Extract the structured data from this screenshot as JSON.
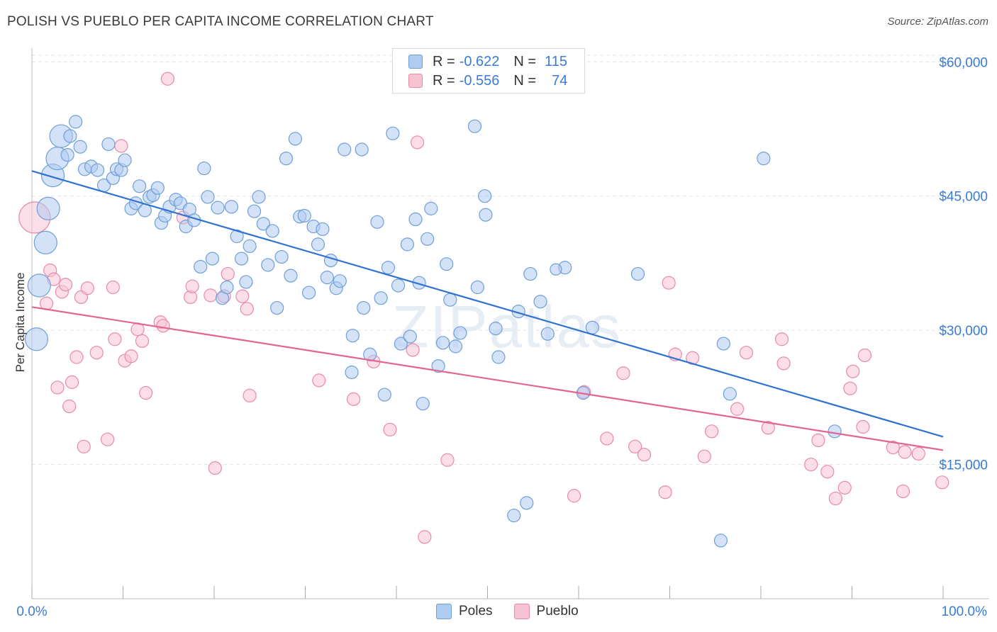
{
  "title": "POLISH VS PUEBLO PER CAPITA INCOME CORRELATION CHART",
  "source": "Source: ZipAtlas.com",
  "watermark": "ZIPatlas",
  "legend": {
    "rows": [
      {
        "r_label": "R =",
        "r_value": "-0.622",
        "n_label": "N =",
        "n_value": "115"
      },
      {
        "r_label": "R =",
        "r_value": "-0.556",
        "n_label": "N =",
        "n_value": "74"
      }
    ]
  },
  "bottom_legend": [
    "Poles",
    "Pueblo"
  ],
  "colors": {
    "poles_fill": "#aecbf0",
    "poles_stroke": "#6f9fd8",
    "poles_line": "#2f72d0",
    "pueblo_fill": "#f7c3d3",
    "pueblo_stroke": "#e88aa8",
    "pueblo_line": "#e2648f",
    "tick_label": "#3a7bd5",
    "grid": "#e3e3e3"
  },
  "chart_data": {
    "type": "scatter",
    "title": "POLISH VS PUEBLO PER CAPITA INCOME CORRELATION CHART",
    "xlabel": "",
    "ylabel": "Per Capita Income",
    "xlim": [
      0,
      100
    ],
    "ylim": [
      0,
      62000
    ],
    "x_tick_labels": [
      "0.0%",
      "100.0%"
    ],
    "y_ticks": [
      15000,
      30000,
      45000,
      60000
    ],
    "y_tick_labels": [
      "$15,000",
      "$30,000",
      "$45,000",
      "$60,000"
    ],
    "grid": "horizontal dashed",
    "legend_position": "top-center",
    "series": [
      {
        "name": "Poles",
        "trend": {
          "x": [
            0,
            100
          ],
          "y": [
            47800,
            18100
          ]
        },
        "points": [
          [
            0.5,
            29000,
            2
          ],
          [
            0.8,
            35000,
            2
          ],
          [
            1.5,
            39800,
            2
          ],
          [
            1.8,
            43600,
            2
          ],
          [
            2.3,
            47300,
            2
          ],
          [
            2.8,
            49200,
            2
          ],
          [
            3.2,
            51700,
            2
          ],
          [
            3.9,
            49600,
            1
          ],
          [
            4.2,
            51700,
            1
          ],
          [
            4.8,
            53300,
            1
          ],
          [
            5.3,
            50500,
            1
          ],
          [
            5.8,
            48000,
            1
          ],
          [
            6.5,
            48300,
            1
          ],
          [
            7.2,
            47900,
            1
          ],
          [
            7.9,
            46200,
            1
          ],
          [
            8.4,
            50800,
            1
          ],
          [
            8.9,
            47000,
            1
          ],
          [
            9.3,
            48000,
            1
          ],
          [
            9.8,
            47900,
            1
          ],
          [
            10.2,
            49000,
            1
          ],
          [
            10.9,
            43600,
            1
          ],
          [
            11.4,
            44200,
            1
          ],
          [
            11.8,
            46100,
            1
          ],
          [
            12.4,
            43400,
            1
          ],
          [
            12.9,
            44900,
            1
          ],
          [
            13.3,
            45100,
            1
          ],
          [
            13.8,
            45900,
            1
          ],
          [
            14.2,
            42000,
            1
          ],
          [
            14.6,
            42800,
            1
          ],
          [
            15.1,
            43800,
            1
          ],
          [
            15.8,
            44600,
            1
          ],
          [
            16.3,
            44200,
            1
          ],
          [
            16.9,
            41600,
            1
          ],
          [
            17.3,
            43500,
            1
          ],
          [
            17.8,
            42300,
            1
          ],
          [
            18.5,
            37100,
            1
          ],
          [
            18.9,
            48100,
            1
          ],
          [
            19.3,
            44900,
            1
          ],
          [
            19.8,
            38000,
            1
          ],
          [
            20.4,
            43700,
            1
          ],
          [
            20.9,
            33600,
            1
          ],
          [
            21.4,
            34800,
            1
          ],
          [
            21.9,
            43800,
            1
          ],
          [
            22.5,
            40500,
            1
          ],
          [
            23.0,
            38000,
            1
          ],
          [
            23.5,
            35400,
            1
          ],
          [
            23.9,
            39400,
            1
          ],
          [
            24.4,
            43300,
            1
          ],
          [
            24.9,
            44900,
            1
          ],
          [
            25.4,
            41900,
            1
          ],
          [
            25.9,
            37300,
            1
          ],
          [
            26.4,
            41100,
            1
          ],
          [
            26.9,
            32500,
            1
          ],
          [
            27.4,
            38200,
            1
          ],
          [
            27.9,
            49200,
            1
          ],
          [
            28.4,
            36100,
            1
          ],
          [
            28.9,
            51400,
            1
          ],
          [
            29.4,
            42700,
            1
          ],
          [
            29.9,
            42800,
            1
          ],
          [
            30.4,
            34200,
            1
          ],
          [
            30.9,
            41600,
            1
          ],
          [
            31.4,
            39600,
            1
          ],
          [
            31.9,
            41300,
            1
          ],
          [
            32.4,
            35900,
            1
          ],
          [
            32.8,
            37800,
            1
          ],
          [
            33.4,
            34700,
            1
          ],
          [
            33.8,
            35500,
            1
          ],
          [
            34.3,
            50200,
            1
          ],
          [
            35.1,
            25300,
            1
          ],
          [
            35.2,
            29400,
            1
          ],
          [
            36.2,
            50200,
            1
          ],
          [
            36.4,
            32500,
            1
          ],
          [
            37.1,
            27300,
            1
          ],
          [
            37.9,
            42100,
            1
          ],
          [
            38.3,
            33600,
            1
          ],
          [
            38.7,
            22800,
            1
          ],
          [
            39.1,
            37000,
            1
          ],
          [
            39.6,
            52000,
            1
          ],
          [
            40.2,
            35000,
            1
          ],
          [
            40.5,
            28500,
            1
          ],
          [
            41.2,
            39600,
            1
          ],
          [
            41.5,
            29300,
            1
          ],
          [
            42.1,
            42400,
            1
          ],
          [
            42.5,
            35300,
            1
          ],
          [
            42.9,
            21800,
            1
          ],
          [
            43.4,
            40200,
            1
          ],
          [
            43.8,
            43600,
            1
          ],
          [
            44.6,
            26000,
            1
          ],
          [
            45.1,
            28600,
            1
          ],
          [
            45.5,
            37400,
            1
          ],
          [
            45.9,
            33400,
            1
          ],
          [
            46.5,
            28200,
            1
          ],
          [
            47.0,
            29700,
            1
          ],
          [
            48.6,
            52800,
            1
          ],
          [
            48.9,
            34800,
            1
          ],
          [
            49.7,
            45000,
            1
          ],
          [
            49.8,
            42900,
            1
          ],
          [
            50.9,
            30200,
            1
          ],
          [
            51.2,
            27000,
            1
          ],
          [
            52.9,
            9300,
            1
          ],
          [
            53.4,
            32100,
            1
          ],
          [
            54.3,
            10700,
            1
          ],
          [
            54.7,
            36300,
            1
          ],
          [
            55.8,
            33200,
            1
          ],
          [
            56.6,
            29600,
            1
          ],
          [
            58.5,
            37000,
            1
          ],
          [
            60.5,
            23000,
            1
          ],
          [
            61.5,
            30300,
            1
          ],
          [
            66.5,
            36300,
            1
          ],
          [
            75.6,
            6500,
            1
          ],
          [
            75.9,
            28500,
            1
          ],
          [
            76.6,
            22900,
            1
          ],
          [
            80.3,
            49200,
            1
          ],
          [
            88.1,
            18700,
            1
          ],
          [
            57.5,
            36800,
            0
          ]
        ]
      },
      {
        "name": "Pueblo",
        "trend": {
          "x": [
            0,
            100
          ],
          "y": [
            32600,
            16600
          ]
        },
        "points": [
          [
            0.3,
            42600,
            3
          ],
          [
            1.6,
            33000,
            1
          ],
          [
            2.0,
            36700,
            1
          ],
          [
            2.4,
            35700,
            1
          ],
          [
            2.8,
            23600,
            1
          ],
          [
            3.3,
            34300,
            1
          ],
          [
            3.7,
            35100,
            1
          ],
          [
            4.1,
            21500,
            1
          ],
          [
            4.4,
            24200,
            1
          ],
          [
            4.9,
            27000,
            1
          ],
          [
            5.4,
            33700,
            1
          ],
          [
            5.7,
            17000,
            1
          ],
          [
            6.1,
            34700,
            1
          ],
          [
            7.1,
            27500,
            1
          ],
          [
            8.3,
            17800,
            1
          ],
          [
            8.9,
            34800,
            1
          ],
          [
            9.1,
            29000,
            1
          ],
          [
            9.8,
            50600,
            1
          ],
          [
            10.2,
            26600,
            1
          ],
          [
            10.9,
            27100,
            1
          ],
          [
            11.6,
            30100,
            1
          ],
          [
            12.1,
            28800,
            1
          ],
          [
            12.5,
            23000,
            1
          ],
          [
            14.1,
            30900,
            1
          ],
          [
            14.4,
            30500,
            1
          ],
          [
            14.9,
            58100,
            1
          ],
          [
            16.6,
            42600,
            1
          ],
          [
            17.4,
            33700,
            1
          ],
          [
            17.6,
            34900,
            1
          ],
          [
            19.6,
            33900,
            1
          ],
          [
            20.1,
            14600,
            1
          ],
          [
            21.1,
            33800,
            1
          ],
          [
            21.5,
            36300,
            1
          ],
          [
            23.1,
            33800,
            1
          ],
          [
            23.6,
            32400,
            1
          ],
          [
            23.9,
            22700,
            1
          ],
          [
            31.5,
            24400,
            1
          ],
          [
            35.3,
            22300,
            1
          ],
          [
            37.5,
            26500,
            1
          ],
          [
            39.3,
            18900,
            1
          ],
          [
            41.8,
            27800,
            1
          ],
          [
            42.3,
            51000,
            1
          ],
          [
            43.1,
            6900,
            1
          ],
          [
            45.6,
            15500,
            1
          ],
          [
            59.5,
            11500,
            1
          ],
          [
            60.6,
            23100,
            1
          ],
          [
            63.1,
            17900,
            1
          ],
          [
            64.9,
            25200,
            1
          ],
          [
            66.2,
            17000,
            1
          ],
          [
            67.2,
            16100,
            1
          ],
          [
            69.5,
            11900,
            1
          ],
          [
            69.9,
            35300,
            1
          ],
          [
            70.6,
            27300,
            1
          ],
          [
            72.5,
            26900,
            1
          ],
          [
            73.8,
            15900,
            1
          ],
          [
            74.6,
            18700,
            1
          ],
          [
            77.4,
            21200,
            1
          ],
          [
            78.4,
            27500,
            1
          ],
          [
            80.8,
            19100,
            1
          ],
          [
            82.3,
            29000,
            1
          ],
          [
            82.5,
            26300,
            1
          ],
          [
            85.5,
            15000,
            1
          ],
          [
            86.3,
            17700,
            1
          ],
          [
            87.3,
            14200,
            1
          ],
          [
            88.2,
            11200,
            1
          ],
          [
            89.2,
            12400,
            1
          ],
          [
            89.8,
            23500,
            1
          ],
          [
            90.1,
            25400,
            1
          ],
          [
            91.2,
            19200,
            1
          ],
          [
            91.4,
            27200,
            1
          ],
          [
            94.5,
            16900,
            1
          ],
          [
            95.6,
            12000,
            1
          ],
          [
            95.8,
            16400,
            1
          ],
          [
            97.3,
            16200,
            1
          ],
          [
            99.9,
            13000,
            1
          ]
        ]
      }
    ]
  }
}
